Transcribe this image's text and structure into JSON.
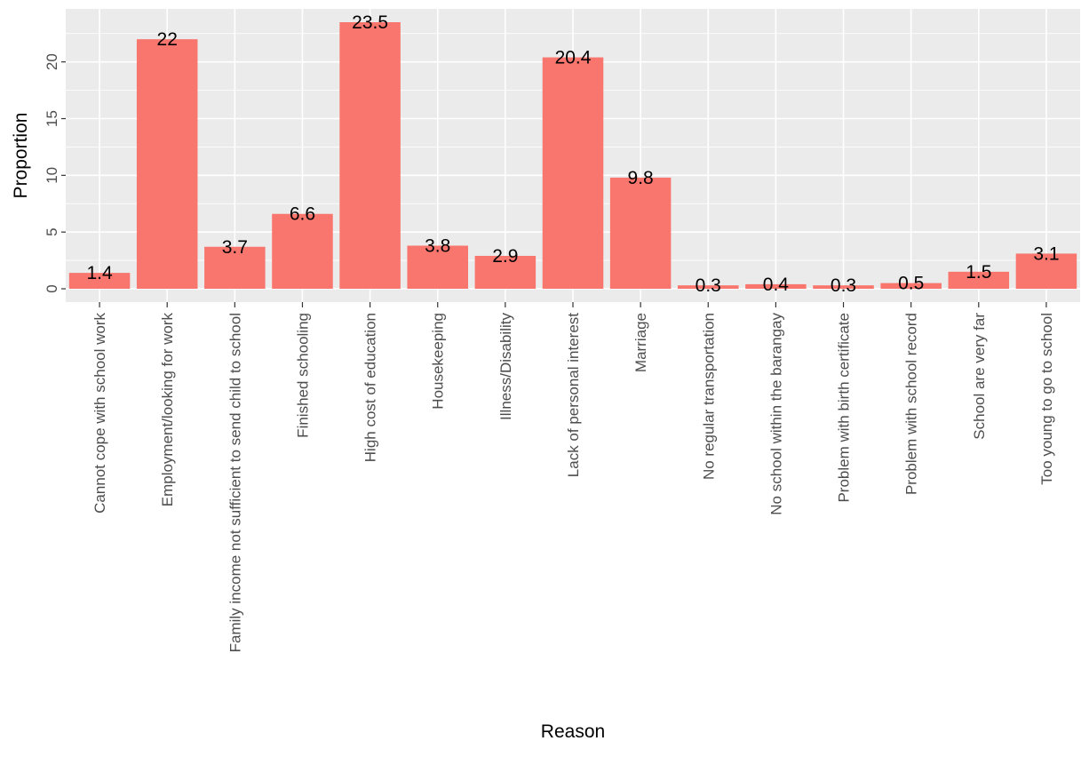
{
  "chart_data": {
    "type": "bar",
    "categories": [
      "Cannot cope with school work",
      "Employment/looking for work",
      "Family income not sufficient to send child to school",
      "Finished schooling",
      "High cost of education",
      "Housekeeping",
      "Illness/Disability",
      "Lack of personal interest",
      "Marriage",
      "No regular transportation",
      "No school within the barangay",
      "Problem with birth certificate",
      "Problem with school record",
      "School are very far",
      "Too young to go to school"
    ],
    "values": [
      1.4,
      22,
      3.7,
      6.6,
      23.5,
      3.8,
      2.9,
      20.4,
      9.8,
      0.3,
      0.4,
      0.3,
      0.5,
      1.5,
      3.1
    ],
    "data_labels": [
      "1.4",
      "22",
      "3.7",
      "6.6",
      "23.5",
      "3.8",
      "2.9",
      "20.4",
      "9.8",
      "0.3",
      "0.4",
      "0.3",
      "0.5",
      "1.5",
      "3.1"
    ],
    "xlabel": "Reason",
    "ylabel": "Proportion",
    "yticks": [
      0,
      5,
      10,
      15,
      20
    ],
    "ylim": [
      -1.175,
      24.675
    ],
    "grid": true,
    "colors": {
      "bar": "#F8766D",
      "panel": "#EBEBEB",
      "grid_major": "#FFFFFF",
      "text": "#000000",
      "tick_text": "#4D4D4D"
    }
  }
}
